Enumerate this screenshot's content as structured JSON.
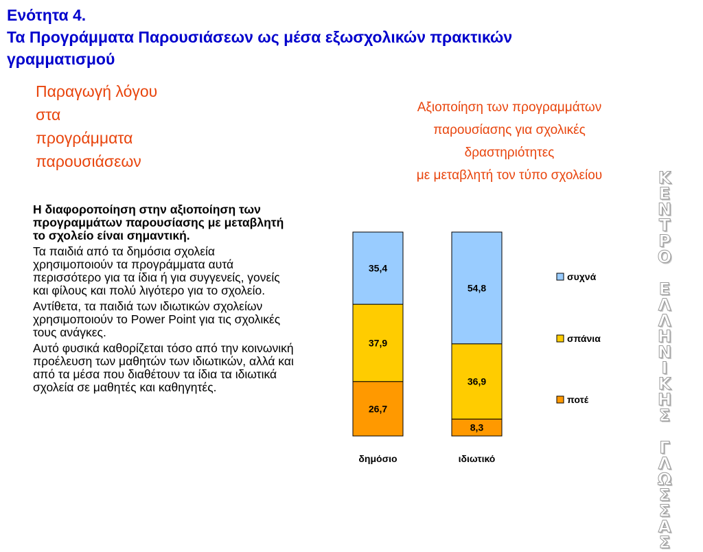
{
  "header": {
    "lines": [
      "Ενότητα 4.",
      "Τα Προγράμματα Παρουσιάσεων ως μέσα εξωσχολικών πρακτικών",
      "γραμματισμού"
    ]
  },
  "section_title": {
    "lines": [
      "Παραγωγή λόγου",
      "στα",
      "προγράμματα",
      "παρουσιάσεων"
    ]
  },
  "body": {
    "lead": "Η διαφοροποίηση στην αξιοποίηση των προγραμμάτων παρουσίασης με μεταβλητή το σχολείο είναι σημαντική.",
    "p1": "Τα παιδιά από τα δημόσια σχολεία χρησιμοποιούν τα προγράμματα αυτά περισσότερο για τα ίδια ή για συγγενείς, γονείς και φίλους και πολύ λιγότερο για το σχολείο.",
    "p2": "Αντίθετα, τα παιδιά των ιδιωτικών σχολείων χρησιμοποιούν το Power Point για τις σχολικές τους ανάγκες.",
    "p3": "Αυτό φυσικά καθορίζεται τόσο από την κοινωνική προέλευση των μαθητών των ιδιωτικών, αλλά και από τα μέσα που διαθέτουν τα ίδια τα ιδιωτικά σχολεία σε μαθητές και καθηγητές."
  },
  "banner": {
    "word1": "ΚΕΝΤΡΟ",
    "word2": "ΕΛΛΗΝΙΚΗΣ",
    "word3": "ΓΛΩΣΣΑΣ"
  },
  "chart_data": {
    "type": "bar",
    "stacked": true,
    "title_lines": [
      "Αξιοποίηση των προγραμμάτων",
      "παρουσίασης για σχολικές",
      "δραστηριότητες",
      "με μεταβλητή τον τύπο σχολείου"
    ],
    "categories": [
      "δημόσιο",
      "ιδιωτικό"
    ],
    "series": [
      {
        "name": "ποτέ",
        "values": [
          26.7,
          8.3
        ],
        "labels": [
          "26,7",
          "8,3"
        ],
        "color": "#ff9900"
      },
      {
        "name": "σπάνια",
        "values": [
          37.9,
          36.9
        ],
        "labels": [
          "37,9",
          "36,9"
        ],
        "color": "#ffcc00"
      },
      {
        "name": "συχνά",
        "values": [
          35.4,
          54.8
        ],
        "labels": [
          "35,4",
          "54,8"
        ],
        "color": "#99ccff"
      }
    ],
    "legend_order": [
      "συχνά",
      "σπάνια",
      "ποτέ"
    ],
    "legend_position": "right",
    "ylim": [
      0,
      100
    ],
    "grid": false,
    "xlabel": "",
    "ylabel": ""
  }
}
